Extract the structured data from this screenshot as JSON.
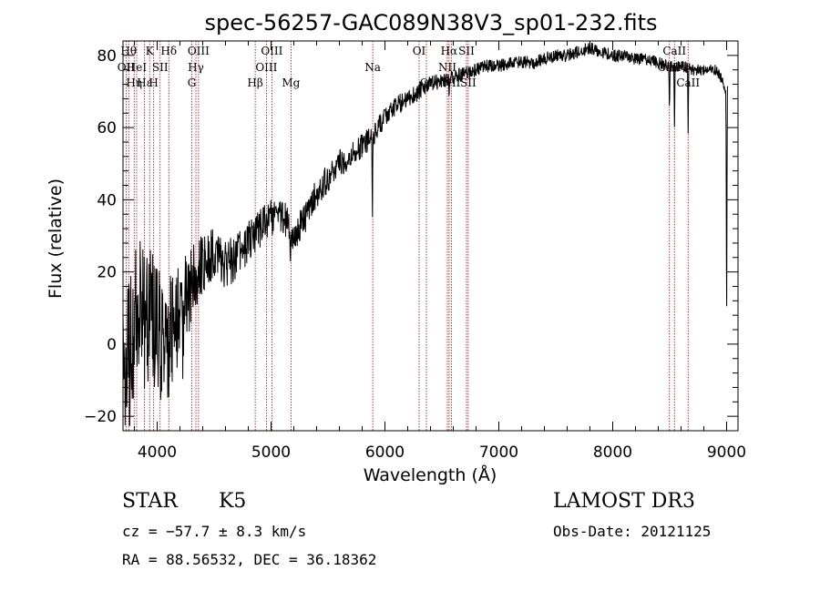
{
  "chart_data": {
    "type": "line",
    "title": "spec-56257-GAC089N38V3_sp01-232.fits",
    "xlabel": "Wavelength (Å)",
    "ylabel": "Flux (relative)",
    "xlim": [
      3700,
      9100
    ],
    "ylim": [
      -24,
      84
    ],
    "x_ticks": [
      4000,
      5000,
      6000,
      7000,
      8000,
      9000
    ],
    "y_ticks": [
      -20,
      0,
      20,
      40,
      60,
      80
    ],
    "grid": false,
    "series": [
      {
        "name": "spectrum",
        "anchors": [
          [
            3700,
            10
          ],
          [
            3750,
            0
          ],
          [
            3800,
            5
          ],
          [
            3850,
            10
          ],
          [
            3900,
            5
          ],
          [
            3950,
            8
          ],
          [
            4000,
            5
          ],
          [
            4050,
            0
          ],
          [
            4100,
            2
          ],
          [
            4150,
            5
          ],
          [
            4200,
            10
          ],
          [
            4250,
            15
          ],
          [
            4300,
            15
          ],
          [
            4350,
            20
          ],
          [
            4400,
            22
          ],
          [
            4500,
            25
          ],
          [
            4600,
            22
          ],
          [
            4700,
            24
          ],
          [
            4800,
            28
          ],
          [
            4900,
            32
          ],
          [
            5000,
            35
          ],
          [
            5100,
            36
          ],
          [
            5200,
            30
          ],
          [
            5300,
            35
          ],
          [
            5400,
            42
          ],
          [
            5500,
            46
          ],
          [
            5600,
            50
          ],
          [
            5700,
            52
          ],
          [
            5800,
            55
          ],
          [
            5900,
            58
          ],
          [
            6000,
            63
          ],
          [
            6100,
            66
          ],
          [
            6200,
            68
          ],
          [
            6300,
            70
          ],
          [
            6400,
            72
          ],
          [
            6500,
            73
          ],
          [
            6600,
            74
          ],
          [
            6700,
            75
          ],
          [
            6800,
            76
          ],
          [
            6900,
            77
          ],
          [
            7000,
            77
          ],
          [
            7100,
            78
          ],
          [
            7200,
            78
          ],
          [
            7300,
            78
          ],
          [
            7400,
            79
          ],
          [
            7500,
            80
          ],
          [
            7600,
            80
          ],
          [
            7700,
            81
          ],
          [
            7800,
            82
          ],
          [
            7900,
            81
          ],
          [
            8000,
            80
          ],
          [
            8100,
            80
          ],
          [
            8200,
            79
          ],
          [
            8300,
            79
          ],
          [
            8400,
            78
          ],
          [
            8500,
            77
          ],
          [
            8600,
            77
          ],
          [
            8700,
            76
          ],
          [
            8800,
            76
          ],
          [
            8900,
            76
          ],
          [
            8950,
            74
          ],
          [
            9000,
            70
          ]
        ],
        "noise_amplitude": [
          [
            3700,
            22
          ],
          [
            4100,
            18
          ],
          [
            4400,
            8
          ],
          [
            5000,
            5
          ],
          [
            6000,
            3
          ],
          [
            6600,
            2
          ],
          [
            9000,
            1.5
          ]
        ],
        "absorption_features": [
          {
            "x": 3720,
            "depth": 28
          },
          {
            "x": 3760,
            "depth": 22
          },
          {
            "x": 4227,
            "depth": 14
          },
          {
            "x": 5170,
            "depth": 10
          },
          {
            "x": 5890,
            "depth": 22
          },
          {
            "x": 6563,
            "depth": 8
          },
          {
            "x": 8498,
            "depth": 12
          },
          {
            "x": 8542,
            "depth": 18
          },
          {
            "x": 8662,
            "depth": 18
          },
          {
            "x": 9000,
            "depth": 70
          }
        ]
      }
    ],
    "line_markers": [
      {
        "wavelength": 3727,
        "label": "OII",
        "row": 2
      },
      {
        "wavelength": 3750,
        "label": "Hθ",
        "row": 1
      },
      {
        "wavelength": 3798,
        "label": "Hη",
        "row": 3
      },
      {
        "wavelength": 3820,
        "label": "HeI",
        "row": 2
      },
      {
        "wavelength": 3889,
        "label": "Hε",
        "row": 3
      },
      {
        "wavelength": 3934,
        "label": "K",
        "row": 1
      },
      {
        "wavelength": 3969,
        "label": "H",
        "row": 3
      },
      {
        "wavelength": 4026,
        "label": "SII",
        "row": 2
      },
      {
        "wavelength": 4102,
        "label": "Hδ",
        "row": 1
      },
      {
        "wavelength": 4304,
        "label": "G",
        "row": 3
      },
      {
        "wavelength": 4340,
        "label": "Hγ",
        "row": 2
      },
      {
        "wavelength": 4363,
        "label": "OIII",
        "row": 1
      },
      {
        "wavelength": 4861,
        "label": "Hβ",
        "row": 3
      },
      {
        "wavelength": 4959,
        "label": "OIII",
        "row": 2
      },
      {
        "wavelength": 5007,
        "label": "OIII",
        "row": 1
      },
      {
        "wavelength": 5175,
        "label": "Mg",
        "row": 3
      },
      {
        "wavelength": 5893,
        "label": "Na",
        "row": 2
      },
      {
        "wavelength": 6300,
        "label": "OI",
        "row": 1
      },
      {
        "wavelength": 6364,
        "label": "OI",
        "row": 3
      },
      {
        "wavelength": 6548,
        "label": "NII",
        "row": 2
      },
      {
        "wavelength": 6563,
        "label": "Hα",
        "row": 1
      },
      {
        "wavelength": 6583,
        "label": "NII",
        "row": 3
      },
      {
        "wavelength": 6716,
        "label": "SII",
        "row": 1
      },
      {
        "wavelength": 6731,
        "label": "SII",
        "row": 3
      },
      {
        "wavelength": 8498,
        "label": "CaII",
        "row": 2
      },
      {
        "wavelength": 8542,
        "label": "CaII",
        "row": 1
      },
      {
        "wavelength": 8662,
        "label": "CaII",
        "row": 3
      }
    ]
  },
  "info": {
    "object_class": "STAR",
    "subclass": "K5",
    "survey": "LAMOST DR3",
    "redshift_text": "cz = −57.7 ± 8.3 km/s",
    "obs_date": "Obs-Date: 20121125",
    "coords": "RA =  88.56532, DEC =  36.18362"
  }
}
